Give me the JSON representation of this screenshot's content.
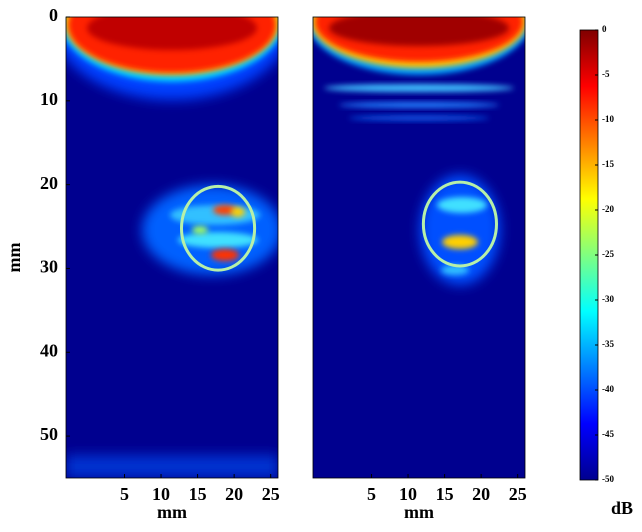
{
  "chart_data": [
    {
      "type": "image",
      "xlabel": "mm",
      "ylabel": "mm",
      "xlim": [
        -3,
        26
      ],
      "ylim": [
        0,
        55
      ],
      "xticks": [
        5,
        10,
        15,
        20,
        25
      ],
      "yticks": [
        0,
        10,
        20,
        30,
        40,
        50
      ],
      "circle": {
        "x": 17.8,
        "y": 25.2,
        "r": 5
      },
      "circle_color": "#b7f0a8"
    },
    {
      "type": "image",
      "xlabel": "mm",
      "xlim": [
        -3,
        26
      ],
      "ylim": [
        0,
        55
      ],
      "xticks": [
        5,
        10,
        15,
        20,
        25
      ],
      "circle": {
        "x": 17.1,
        "y": 24.7,
        "r": 5
      },
      "circle_color": "#b7f0a8"
    },
    {
      "type": "colorbar",
      "label": "dB",
      "ylim": [
        -50,
        0
      ],
      "yticks": [
        0,
        -5,
        -10,
        -15,
        -20,
        -25,
        -30,
        -35,
        -40,
        -45,
        -50
      ],
      "colors": [
        "#00008f",
        "#0000ff",
        "#0080ff",
        "#00ffff",
        "#80ff80",
        "#ffff00",
        "#ff8000",
        "#ff0000",
        "#800000"
      ]
    }
  ]
}
